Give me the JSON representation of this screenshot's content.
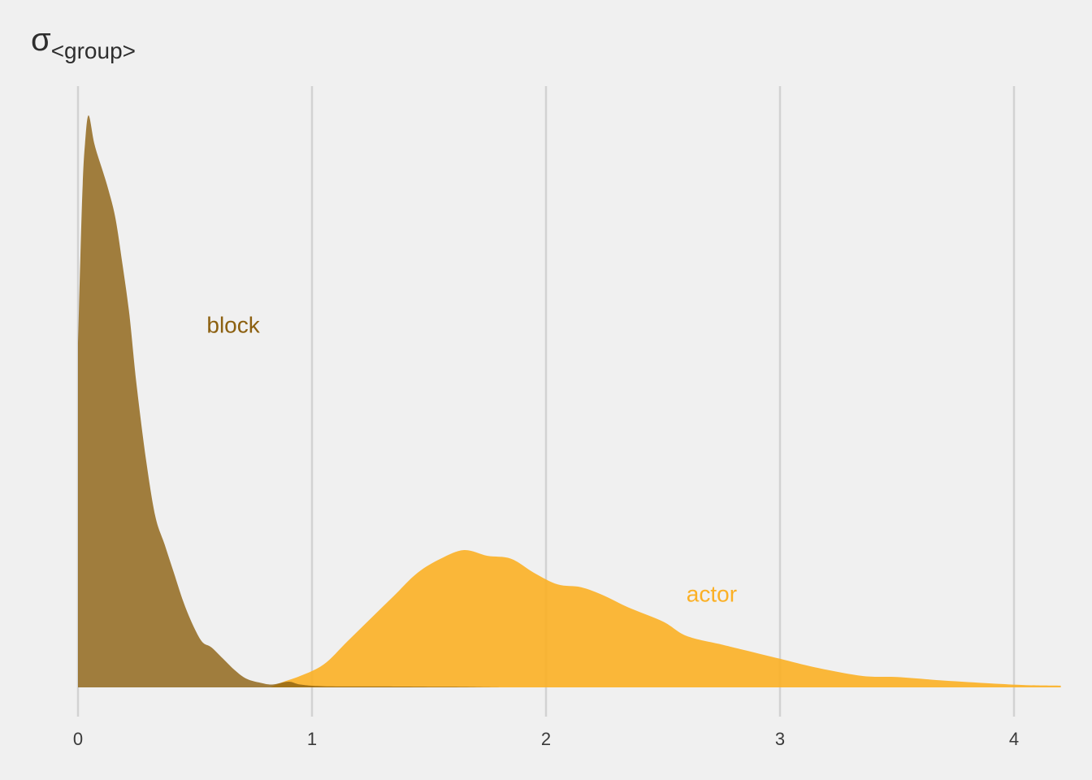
{
  "chart_data": {
    "type": "area",
    "title_symbol": "σ",
    "title_subscript": "<group>",
    "xlabel": "",
    "ylabel": "",
    "xlim": [
      0,
      4.2
    ],
    "ylim": [
      0,
      1.0
    ],
    "x_ticks": [
      0,
      1,
      2,
      3,
      4
    ],
    "x_tick_labels": [
      "0",
      "1",
      "2",
      "3",
      "4"
    ],
    "grid": "vertical",
    "legend": "none",
    "series": [
      {
        "name": "actor",
        "color": "#fbb025",
        "opacity": 0.9,
        "label_x": 2.6,
        "label_y": 0.15,
        "points": [
          [
            0.82,
            0.0
          ],
          [
            0.88,
            0.01
          ],
          [
            0.95,
            0.02
          ],
          [
            1.05,
            0.04
          ],
          [
            1.15,
            0.08
          ],
          [
            1.25,
            0.12
          ],
          [
            1.35,
            0.16
          ],
          [
            1.45,
            0.2
          ],
          [
            1.55,
            0.225
          ],
          [
            1.65,
            0.24
          ],
          [
            1.75,
            0.23
          ],
          [
            1.85,
            0.225
          ],
          [
            1.95,
            0.2
          ],
          [
            2.05,
            0.18
          ],
          [
            2.15,
            0.175
          ],
          [
            2.25,
            0.16
          ],
          [
            2.35,
            0.14
          ],
          [
            2.5,
            0.115
          ],
          [
            2.6,
            0.09
          ],
          [
            2.75,
            0.075
          ],
          [
            2.85,
            0.065
          ],
          [
            3.0,
            0.05
          ],
          [
            3.15,
            0.035
          ],
          [
            3.35,
            0.02
          ],
          [
            3.5,
            0.018
          ],
          [
            3.7,
            0.012
          ],
          [
            3.9,
            0.007
          ],
          [
            4.05,
            0.004
          ],
          [
            4.2,
            0.003
          ]
        ]
      },
      {
        "name": "block",
        "color": "#8c6010",
        "opacity": 0.8,
        "label_x": 0.55,
        "label_y": 0.62,
        "points": [
          [
            0.0,
            0.6
          ],
          [
            0.01,
            0.75
          ],
          [
            0.02,
            0.88
          ],
          [
            0.03,
            0.95
          ],
          [
            0.045,
            1.0
          ],
          [
            0.07,
            0.95
          ],
          [
            0.1,
            0.91
          ],
          [
            0.13,
            0.87
          ],
          [
            0.16,
            0.82
          ],
          [
            0.19,
            0.74
          ],
          [
            0.22,
            0.65
          ],
          [
            0.25,
            0.53
          ],
          [
            0.29,
            0.4
          ],
          [
            0.33,
            0.3
          ],
          [
            0.37,
            0.25
          ],
          [
            0.41,
            0.2
          ],
          [
            0.45,
            0.15
          ],
          [
            0.49,
            0.11
          ],
          [
            0.53,
            0.08
          ],
          [
            0.57,
            0.07
          ],
          [
            0.62,
            0.05
          ],
          [
            0.67,
            0.03
          ],
          [
            0.72,
            0.015
          ],
          [
            0.78,
            0.008
          ],
          [
            0.83,
            0.005
          ],
          [
            0.9,
            0.01
          ],
          [
            0.95,
            0.005
          ],
          [
            1.05,
            0.002
          ],
          [
            1.3,
            0.0015
          ],
          [
            1.6,
            0.001
          ],
          [
            1.8,
            0.0
          ]
        ]
      }
    ]
  }
}
